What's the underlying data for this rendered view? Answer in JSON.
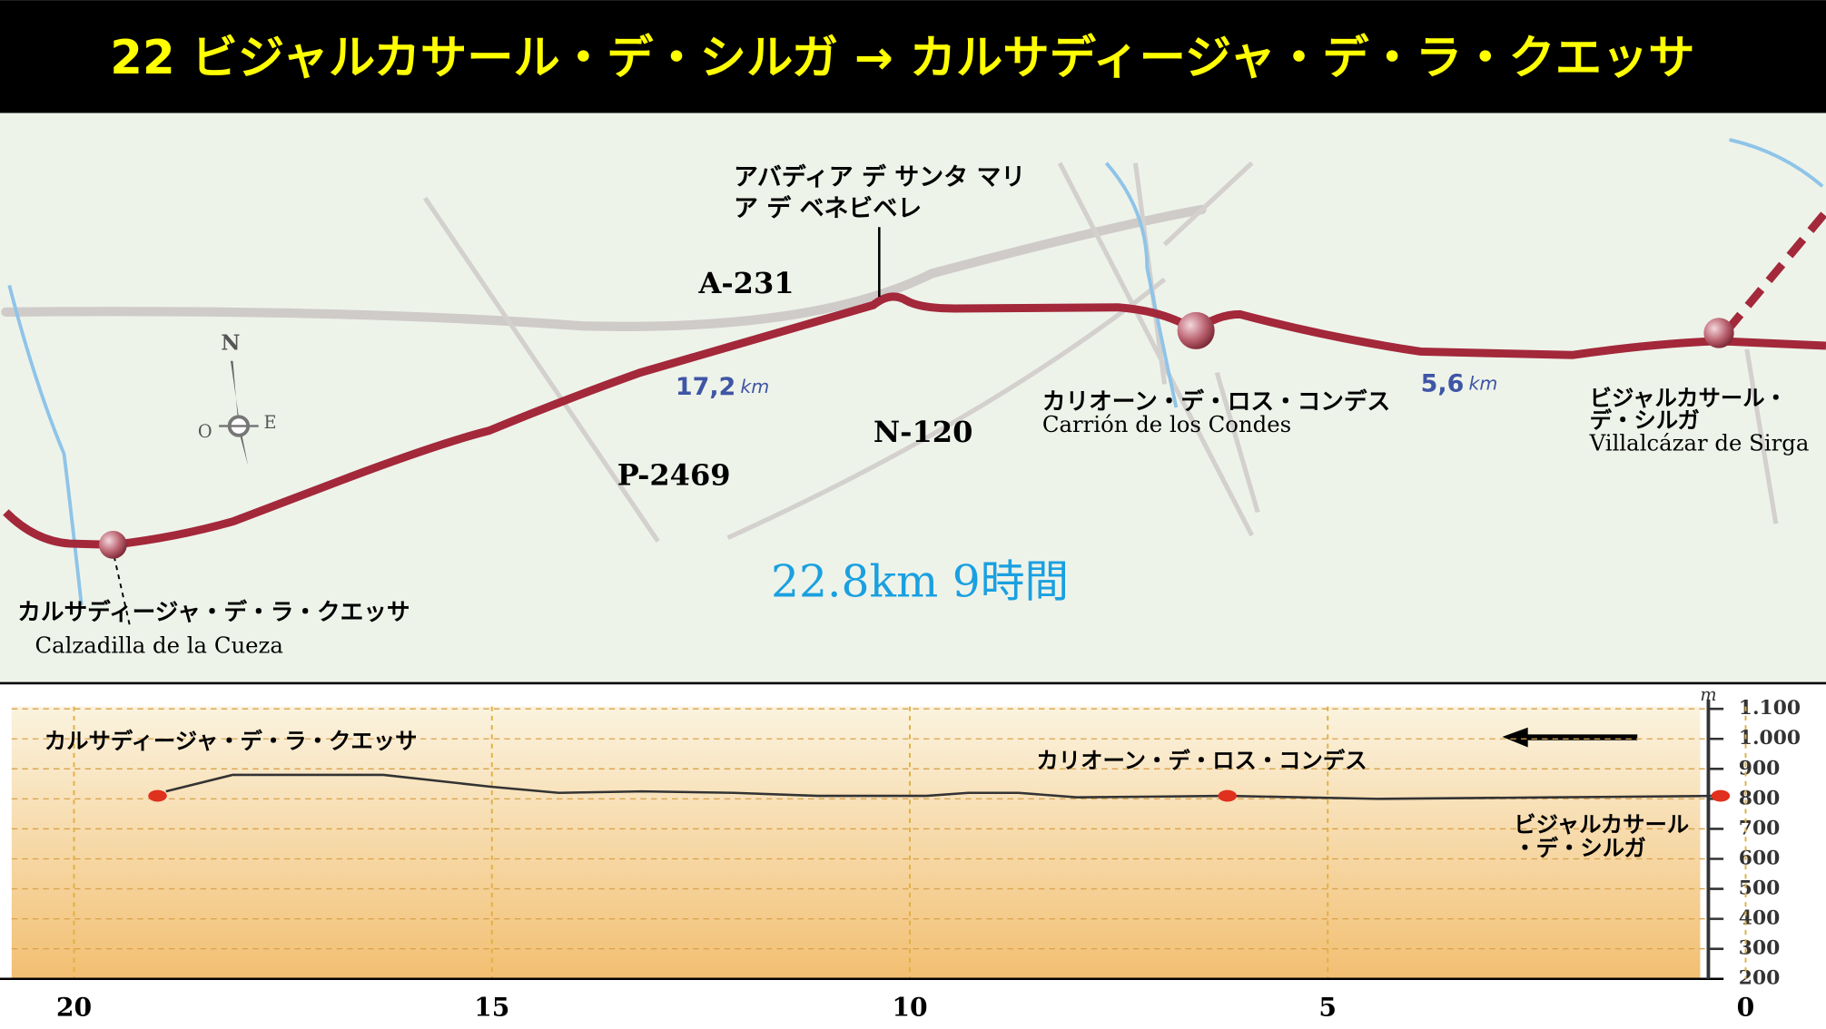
{
  "title": "22 ビジャルカサール・デ・シルガ → カルサディージャ・デ・ラ・クエッサ",
  "map": {
    "abbey": [
      "アバディア デ サンタ マリ",
      "ア デ ベネビベレ"
    ],
    "roads": [
      "A-231",
      "N-120",
      "P-2469"
    ],
    "distances": [
      {
        "value": "17,2",
        "unit": "km"
      },
      {
        "value": "5,6",
        "unit": "km"
      }
    ],
    "towns": [
      {
        "name_jp": "カルサディージャ・デ・ラ・クエッサ",
        "name": "Calzadilla de la Cueza"
      },
      {
        "name_jp": "カリオーン・デ・ロス・コンデス",
        "name": "Carrión de los Condes"
      },
      {
        "name_jp": [
          "ビジャルカサール・",
          "デ・シルガ"
        ],
        "name": "Villalcázar de Sirga"
      }
    ],
    "total": "22.8km 9時間",
    "compass": [
      "N",
      "O",
      "E"
    ]
  },
  "chart_data": {
    "type": "line",
    "y_unit": "m",
    "x": [
      18.9,
      18.1,
      16.3,
      15,
      14.2,
      13.2,
      12.1,
      11.1,
      9.8,
      9.3,
      8.7,
      8.0,
      6.2,
      4.4,
      2.3,
      0.3
    ],
    "values": [
      825,
      880,
      880,
      840,
      820,
      825,
      820,
      810,
      810,
      820,
      820,
      805,
      810,
      800,
      805,
      810
    ],
    "color": "#333333",
    "xlim": [
      20.3,
      0
    ],
    "xticks": [
      20,
      15,
      10,
      5,
      0
    ],
    "ylim": [
      200,
      1100
    ],
    "yticks": [
      {
        "value": 1100,
        "label": "1.100"
      },
      {
        "value": 1000,
        "label": "1.000"
      },
      900,
      800,
      700,
      600,
      500,
      400,
      300,
      200
    ],
    "grid": true,
    "annotations": [
      {
        "text": [
          "カルサディージャ・デ・ラ・クエッサ"
        ],
        "x": 19,
        "y": 810
      },
      {
        "text": [
          "カリオーン・デ・ロス・コンデス"
        ],
        "x": 6.2,
        "y": 810
      },
      {
        "text": [
          "ビジャルカサール",
          "・デ・シルガ"
        ],
        "x": 0.3,
        "y": 810
      }
    ]
  }
}
